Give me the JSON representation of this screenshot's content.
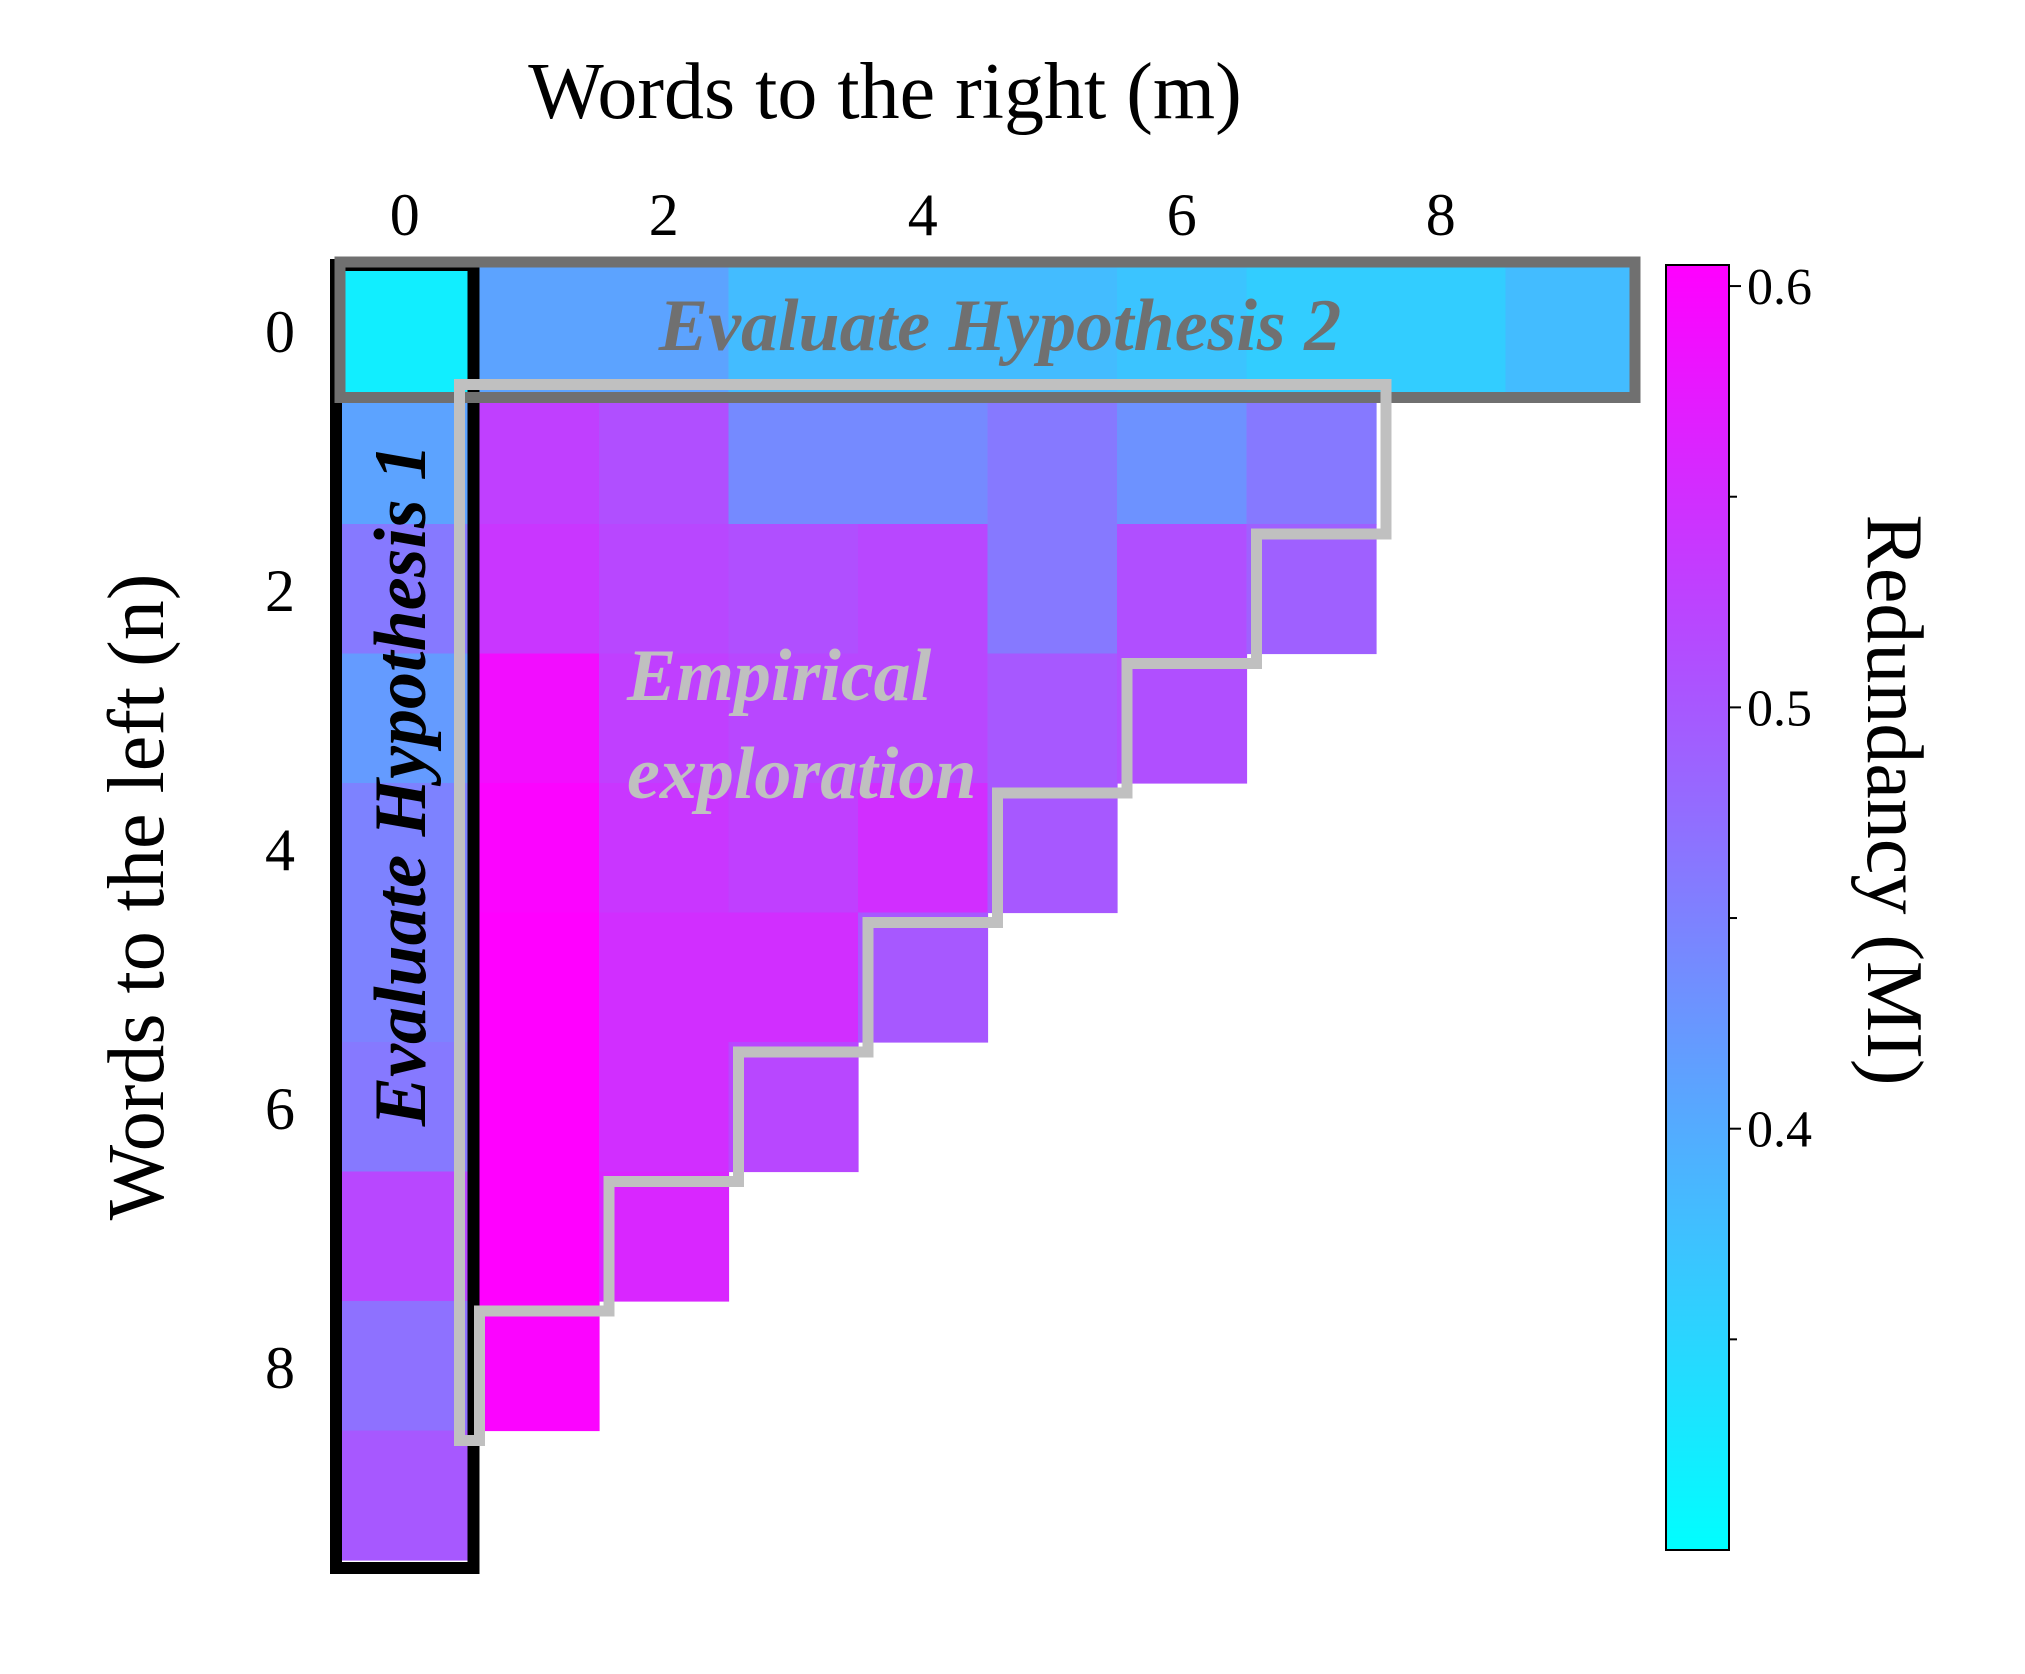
{
  "chart_data": {
    "type": "heatmap",
    "title": "",
    "xlabel": "Words to the right (m)",
    "ylabel": "Words to the left (n)",
    "x_ticks": [
      "0",
      "2",
      "4",
      "6",
      "8"
    ],
    "y_ticks": [
      "0",
      "2",
      "4",
      "6",
      "8"
    ],
    "x": [
      0,
      1,
      2,
      3,
      4,
      5,
      6,
      7,
      8,
      9
    ],
    "y": [
      0,
      1,
      2,
      3,
      4,
      5,
      6,
      7,
      8,
      9
    ],
    "note_null": "null cells are empty (not plotted)",
    "values": [
      [
        0.32,
        0.41,
        0.41,
        0.38,
        0.38,
        0.38,
        0.37,
        0.36,
        0.36,
        0.38
      ],
      [
        0.41,
        0.53,
        0.51,
        0.44,
        0.44,
        0.46,
        0.43,
        0.46,
        null,
        null
      ],
      [
        0.46,
        0.54,
        0.52,
        0.51,
        0.52,
        0.46,
        0.51,
        0.49,
        null,
        null
      ],
      [
        0.42,
        0.59,
        0.53,
        0.52,
        0.52,
        0.5,
        0.51,
        null,
        null,
        null
      ],
      [
        0.45,
        0.6,
        0.54,
        0.53,
        0.55,
        0.5,
        null,
        null,
        null,
        null
      ],
      [
        0.45,
        0.61,
        0.55,
        0.55,
        0.5,
        null,
        null,
        null,
        null,
        null
      ],
      [
        0.46,
        0.61,
        0.55,
        0.52,
        null,
        null,
        null,
        null,
        null,
        null
      ],
      [
        0.52,
        0.61,
        0.56,
        null,
        null,
        null,
        null,
        null,
        null,
        null
      ],
      [
        0.47,
        0.6,
        null,
        null,
        null,
        null,
        null,
        null,
        null,
        null
      ],
      [
        0.5,
        null,
        null,
        null,
        null,
        null,
        null,
        null,
        null,
        null
      ]
    ],
    "colorbar": {
      "label": "Redundancy (MI)",
      "range": [
        0.3,
        0.605
      ],
      "ticks": [
        "0.6",
        "0.5",
        "0.4"
      ],
      "tick_values": [
        0.6,
        0.5,
        0.4
      ],
      "minor_tick_values": [
        0.55,
        0.45,
        0.35
      ],
      "colors": {
        "low": "#00ffff",
        "high": "#ff00ff"
      }
    },
    "annotations": [
      {
        "id": "h2",
        "text": "Evaluate Hypothesis 2",
        "color": "#707070"
      },
      {
        "id": "h1",
        "text": "Evaluate Hypothesis 1",
        "color": "#000000"
      },
      {
        "id": "emp",
        "lines": [
          "Empirical",
          "exploration"
        ],
        "color": "#c0c0c0"
      }
    ]
  }
}
